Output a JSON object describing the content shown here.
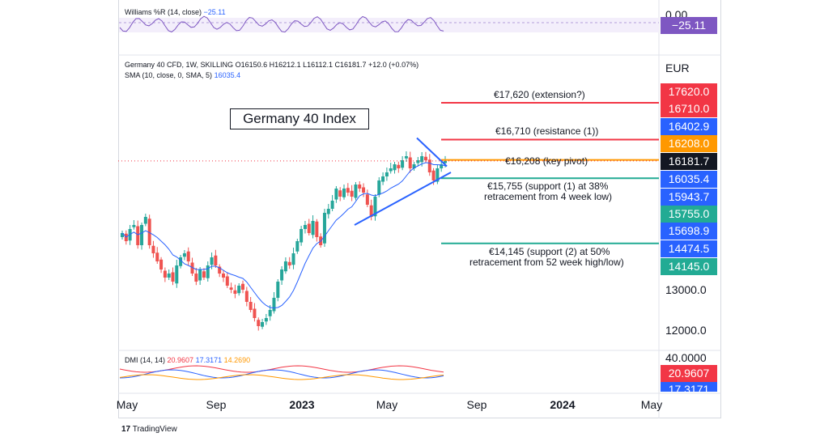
{
  "williams": {
    "label": "Williams %R (14, close)",
    "value": "−25.11",
    "top_label": "0.00",
    "value_chip": "−25.11"
  },
  "header": {
    "symbol_line": "Germany 40 CFD, 1W, SKILLING",
    "ohlc": "O16150.6  H16212.1  L16112.1  C16181.7  +12.0 (+0.07%)",
    "sma_label": "SMA (10, close, 0, SMA, 5)",
    "sma_value": "16035.4"
  },
  "title": "Germany 40 Index",
  "currency": "EUR",
  "annotations": {
    "extension": "€17,620 (extension?)",
    "resistance": "€16,710 (resistance (1))",
    "pivot": "€16,208 (key pivot)",
    "support1_a": "€15,755 (support (1) at 38%",
    "support1_b": "retracement from 4 week low)",
    "support2_a": "€14,145 (support (2) at 50%",
    "support2_b": "retracement from 52 week high/low)"
  },
  "price_chips": [
    {
      "text": "17620.0",
      "color": "#f23645"
    },
    {
      "text": "16710.0",
      "color": "#f23645"
    },
    {
      "text": "16402.9",
      "color": "#2962ff"
    },
    {
      "text": "16208.0",
      "color": "#ff9800"
    },
    {
      "text": "16181.7",
      "color": "#131722"
    },
    {
      "text": "16035.4",
      "color": "#2962ff"
    },
    {
      "text": "15943.7",
      "color": "#2962ff"
    },
    {
      "text": "15755.0",
      "color": "#22ab94"
    },
    {
      "text": "15698.9",
      "color": "#2962ff"
    },
    {
      "text": "14474.5",
      "color": "#2962ff"
    },
    {
      "text": "14145.0",
      "color": "#22ab94"
    }
  ],
  "axis_labels": {
    "p13000": "13000.0",
    "p12000": "12000.0"
  },
  "dmi": {
    "label": "DMI (14, 14)",
    "v1": "20.9607",
    "v2": "17.3171",
    "v3": "14.2690",
    "top_label": "40.0000",
    "chip1": "20.9607",
    "chip2": "17.3171"
  },
  "x_labels": [
    "May",
    "Sep",
    "2023",
    "May",
    "Sep",
    "2024",
    "May"
  ],
  "brand": "TradingView",
  "colors": {
    "up": "#26a69a",
    "down": "#ef5350",
    "sma": "#2962ff",
    "resistance": "#f23645",
    "pivot": "#ff9800",
    "support": "#22ab94",
    "trend": "#2962ff"
  },
  "chart_data": {
    "type": "candlestick",
    "title": "Germany 40 Index",
    "timeframe": "1W",
    "price_scale": [
      11700,
      18200
    ],
    "levels": [
      {
        "name": "extension",
        "value": 17620
      },
      {
        "name": "resistance (1)",
        "value": 16710
      },
      {
        "name": "key pivot",
        "value": 16208
      },
      {
        "name": "support (1)",
        "value": 15755
      },
      {
        "name": "support (2)",
        "value": 14145
      }
    ],
    "last": {
      "open": 16150.6,
      "high": 16212.1,
      "low": 16112.1,
      "close": 16181.7
    },
    "sma_last": 16035.4,
    "closes_approx": [
      14400,
      14200,
      14500,
      14600,
      14100,
      14600,
      14800,
      14100,
      13900,
      13700,
      13500,
      13300,
      13400,
      13200,
      13600,
      13800,
      13900,
      13700,
      13400,
      13200,
      13500,
      13300,
      13600,
      13800,
      13600,
      13400,
      13300,
      13100,
      13000,
      12900,
      13100,
      13000,
      12700,
      12500,
      12300,
      12100,
      12200,
      12300,
      12500,
      12800,
      13200,
      13500,
      13700,
      13600,
      13900,
      14200,
      14500,
      14600,
      14400,
      14700,
      14300,
      14100,
      14900,
      15000,
      15200,
      15500,
      15300,
      15500,
      15400,
      15300,
      15600,
      15500,
      15400,
      15100,
      14800,
      15300,
      15700,
      15800,
      15900,
      16000,
      16100,
      16000,
      16200,
      16300,
      16000,
      16100,
      16200,
      16300,
      16200,
      15900,
      15700,
      16000,
      16100,
      16182
    ]
  }
}
